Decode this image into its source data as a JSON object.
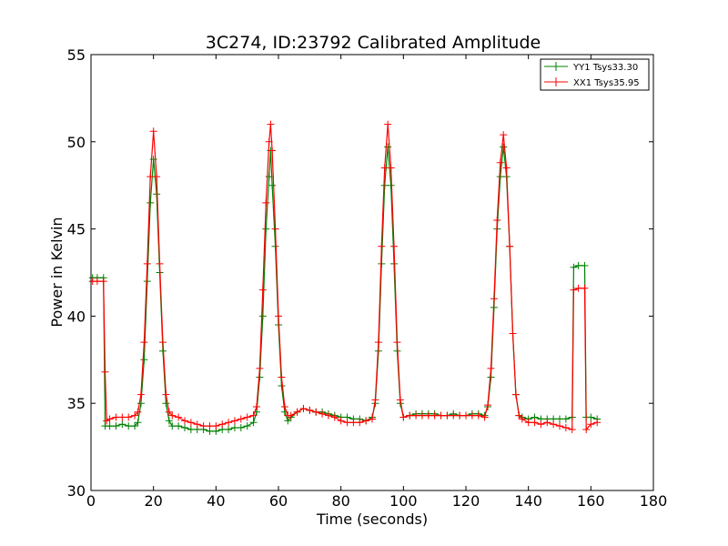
{
  "chart_data": {
    "type": "line",
    "title": "3C274, ID:23792 Calibrated Amplitude",
    "xlabel": "Time (seconds)",
    "ylabel": "Power in Kelvin",
    "xlim": [
      0,
      180
    ],
    "ylim": [
      30,
      55
    ],
    "xticks": [
      0,
      20,
      40,
      60,
      80,
      100,
      120,
      140,
      160,
      180
    ],
    "yticks": [
      30,
      35,
      40,
      45,
      50,
      55
    ],
    "grid": false,
    "legend_position": "top-right",
    "marker": "+",
    "series": [
      {
        "name": "YY1 Tsys33.30",
        "color": "#008000",
        "points": [
          [
            0.5,
            42.2
          ],
          [
            2,
            42.2
          ],
          [
            4,
            42.2
          ],
          [
            4.5,
            33.7
          ],
          [
            6,
            33.7
          ],
          [
            8,
            33.7
          ],
          [
            10,
            33.8
          ],
          [
            12,
            33.7
          ],
          [
            14,
            33.7
          ],
          [
            15,
            33.9
          ],
          [
            16,
            35.0
          ],
          [
            17,
            37.5
          ],
          [
            18,
            42.0
          ],
          [
            19,
            46.5
          ],
          [
            20,
            49.0
          ],
          [
            21,
            47.0
          ],
          [
            22,
            42.5
          ],
          [
            23,
            38.0
          ],
          [
            24,
            35.0
          ],
          [
            25,
            34.0
          ],
          [
            26,
            33.7
          ],
          [
            28,
            33.7
          ],
          [
            30,
            33.6
          ],
          [
            32,
            33.5
          ],
          [
            34,
            33.5
          ],
          [
            36,
            33.5
          ],
          [
            38,
            33.4
          ],
          [
            40,
            33.4
          ],
          [
            42,
            33.5
          ],
          [
            44,
            33.5
          ],
          [
            46,
            33.6
          ],
          [
            48,
            33.6
          ],
          [
            50,
            33.7
          ],
          [
            52,
            33.9
          ],
          [
            53,
            34.5
          ],
          [
            54,
            36.5
          ],
          [
            55,
            40.0
          ],
          [
            56,
            45.0
          ],
          [
            57,
            48.0
          ],
          [
            57.5,
            49.5
          ],
          [
            58,
            47.5
          ],
          [
            59,
            44.0
          ],
          [
            60,
            39.5
          ],
          [
            61,
            36.0
          ],
          [
            62,
            34.5
          ],
          [
            63,
            34.0
          ],
          [
            64,
            34.2
          ],
          [
            66,
            34.5
          ],
          [
            68,
            34.7
          ],
          [
            70,
            34.6
          ],
          [
            72,
            34.5
          ],
          [
            74,
            34.5
          ],
          [
            76,
            34.4
          ],
          [
            78,
            34.3
          ],
          [
            80,
            34.2
          ],
          [
            82,
            34.2
          ],
          [
            84,
            34.1
          ],
          [
            86,
            34.1
          ],
          [
            88,
            34.0
          ],
          [
            90,
            34.2
          ],
          [
            91,
            35.0
          ],
          [
            92,
            38.0
          ],
          [
            93,
            43.0
          ],
          [
            94,
            47.5
          ],
          [
            95,
            49.7
          ],
          [
            96,
            47.5
          ],
          [
            97,
            43.0
          ],
          [
            98,
            38.0
          ],
          [
            99,
            35.0
          ],
          [
            100,
            34.2
          ],
          [
            102,
            34.3
          ],
          [
            104,
            34.4
          ],
          [
            106,
            34.4
          ],
          [
            108,
            34.4
          ],
          [
            110,
            34.4
          ],
          [
            112,
            34.3
          ],
          [
            114,
            34.3
          ],
          [
            116,
            34.4
          ],
          [
            118,
            34.3
          ],
          [
            120,
            34.3
          ],
          [
            122,
            34.4
          ],
          [
            124,
            34.4
          ],
          [
            126,
            34.3
          ],
          [
            127,
            34.8
          ],
          [
            128,
            36.5
          ],
          [
            129,
            40.5
          ],
          [
            130,
            45.0
          ],
          [
            131,
            48.0
          ],
          [
            132,
            49.7
          ],
          [
            133,
            48.0
          ],
          [
            134,
            44.0
          ],
          [
            135,
            39.0
          ],
          [
            136,
            35.5
          ],
          [
            137,
            34.3
          ],
          [
            138,
            34.2
          ],
          [
            140,
            34.1
          ],
          [
            142,
            34.2
          ],
          [
            144,
            34.1
          ],
          [
            146,
            34.1
          ],
          [
            148,
            34.1
          ],
          [
            150,
            34.1
          ],
          [
            152,
            34.1
          ],
          [
            154,
            34.2
          ],
          [
            154.5,
            42.8
          ],
          [
            156,
            42.9
          ],
          [
            158,
            42.9
          ],
          [
            158.5,
            34.2
          ],
          [
            160,
            34.2
          ],
          [
            162,
            34.1
          ]
        ]
      },
      {
        "name": "XX1 Tsys35.95",
        "color": "#ff0000",
        "points": [
          [
            0.5,
            42.0
          ],
          [
            2,
            42.0
          ],
          [
            4,
            42.0
          ],
          [
            4.5,
            36.8
          ],
          [
            5,
            34.0
          ],
          [
            6,
            34.1
          ],
          [
            8,
            34.2
          ],
          [
            10,
            34.2
          ],
          [
            12,
            34.2
          ],
          [
            14,
            34.3
          ],
          [
            15,
            34.5
          ],
          [
            16,
            35.5
          ],
          [
            17,
            38.5
          ],
          [
            18,
            43.0
          ],
          [
            19,
            48.0
          ],
          [
            20,
            50.6
          ],
          [
            21,
            48.0
          ],
          [
            22,
            43.0
          ],
          [
            23,
            38.5
          ],
          [
            24,
            35.5
          ],
          [
            25,
            34.5
          ],
          [
            26,
            34.3
          ],
          [
            28,
            34.2
          ],
          [
            30,
            34.0
          ],
          [
            32,
            33.9
          ],
          [
            34,
            33.8
          ],
          [
            36,
            33.7
          ],
          [
            38,
            33.7
          ],
          [
            40,
            33.7
          ],
          [
            42,
            33.8
          ],
          [
            44,
            33.9
          ],
          [
            46,
            34.0
          ],
          [
            48,
            34.1
          ],
          [
            50,
            34.2
          ],
          [
            52,
            34.3
          ],
          [
            53,
            34.8
          ],
          [
            54,
            37.0
          ],
          [
            55,
            41.5
          ],
          [
            56,
            46.5
          ],
          [
            57,
            50.0
          ],
          [
            57.5,
            51.0
          ],
          [
            58,
            49.5
          ],
          [
            59,
            45.0
          ],
          [
            60,
            40.0
          ],
          [
            61,
            36.5
          ],
          [
            62,
            34.8
          ],
          [
            63,
            34.3
          ],
          [
            64,
            34.3
          ],
          [
            66,
            34.5
          ],
          [
            68,
            34.7
          ],
          [
            70,
            34.6
          ],
          [
            72,
            34.5
          ],
          [
            74,
            34.4
          ],
          [
            76,
            34.3
          ],
          [
            78,
            34.2
          ],
          [
            80,
            34.0
          ],
          [
            82,
            33.9
          ],
          [
            84,
            33.9
          ],
          [
            86,
            33.9
          ],
          [
            88,
            34.0
          ],
          [
            90,
            34.1
          ],
          [
            91,
            35.2
          ],
          [
            92,
            38.5
          ],
          [
            93,
            44.0
          ],
          [
            94,
            48.5
          ],
          [
            95,
            51.0
          ],
          [
            96,
            48.5
          ],
          [
            97,
            44.0
          ],
          [
            98,
            38.5
          ],
          [
            99,
            35.2
          ],
          [
            100,
            34.2
          ],
          [
            102,
            34.3
          ],
          [
            104,
            34.3
          ],
          [
            106,
            34.3
          ],
          [
            108,
            34.3
          ],
          [
            110,
            34.3
          ],
          [
            112,
            34.3
          ],
          [
            114,
            34.3
          ],
          [
            116,
            34.3
          ],
          [
            118,
            34.3
          ],
          [
            120,
            34.3
          ],
          [
            122,
            34.3
          ],
          [
            124,
            34.3
          ],
          [
            126,
            34.2
          ],
          [
            127,
            34.9
          ],
          [
            128,
            37.0
          ],
          [
            129,
            41.0
          ],
          [
            130,
            45.5
          ],
          [
            131,
            48.8
          ],
          [
            132,
            50.4
          ],
          [
            133,
            48.5
          ],
          [
            134,
            44.0
          ],
          [
            135,
            39.0
          ],
          [
            136,
            35.5
          ],
          [
            137,
            34.3
          ],
          [
            138,
            34.1
          ],
          [
            140,
            33.9
          ],
          [
            142,
            33.9
          ],
          [
            144,
            33.8
          ],
          [
            146,
            33.9
          ],
          [
            148,
            33.8
          ],
          [
            150,
            33.7
          ],
          [
            152,
            33.6
          ],
          [
            154,
            33.5
          ],
          [
            154.5,
            41.5
          ],
          [
            156,
            41.6
          ],
          [
            158,
            41.6
          ],
          [
            158.5,
            33.5
          ],
          [
            160,
            33.8
          ],
          [
            162,
            33.9
          ]
        ]
      }
    ]
  }
}
